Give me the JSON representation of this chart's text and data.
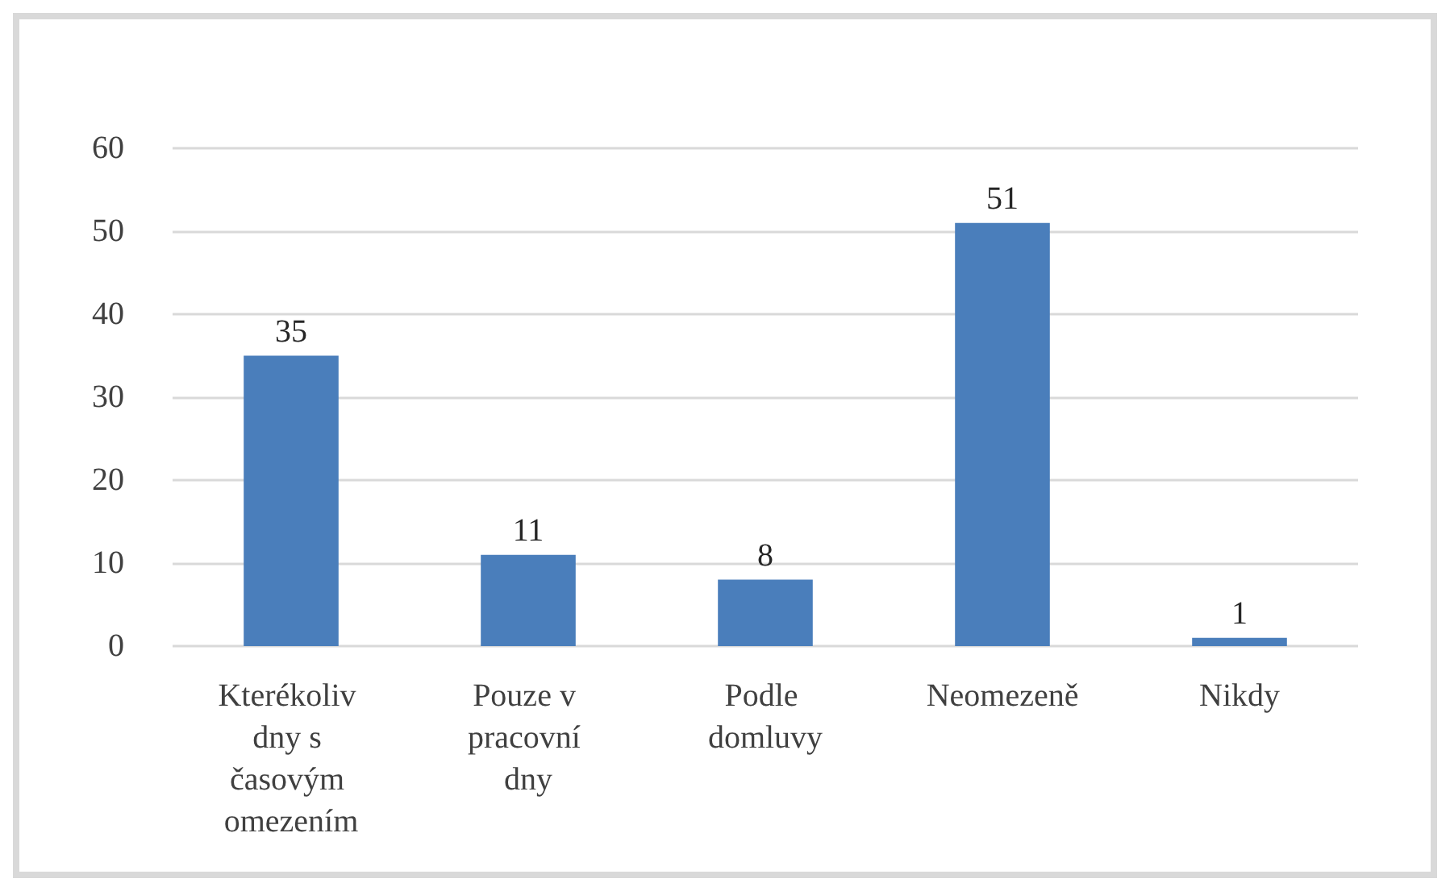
{
  "chart_data": {
    "type": "bar",
    "categories": [
      "Kterékoliv dny s časovým omezením",
      "Pouze v pracovní dny",
      "Podle domluvy",
      "Neomezeně",
      "Nikdy"
    ],
    "values": [
      35,
      11,
      8,
      51,
      1
    ],
    "color": "#4a7ebb",
    "ylim": [
      0,
      60
    ],
    "yticks": [
      0,
      10,
      20,
      30,
      40,
      50,
      60
    ],
    "grid": "y",
    "data_labels": true
  }
}
